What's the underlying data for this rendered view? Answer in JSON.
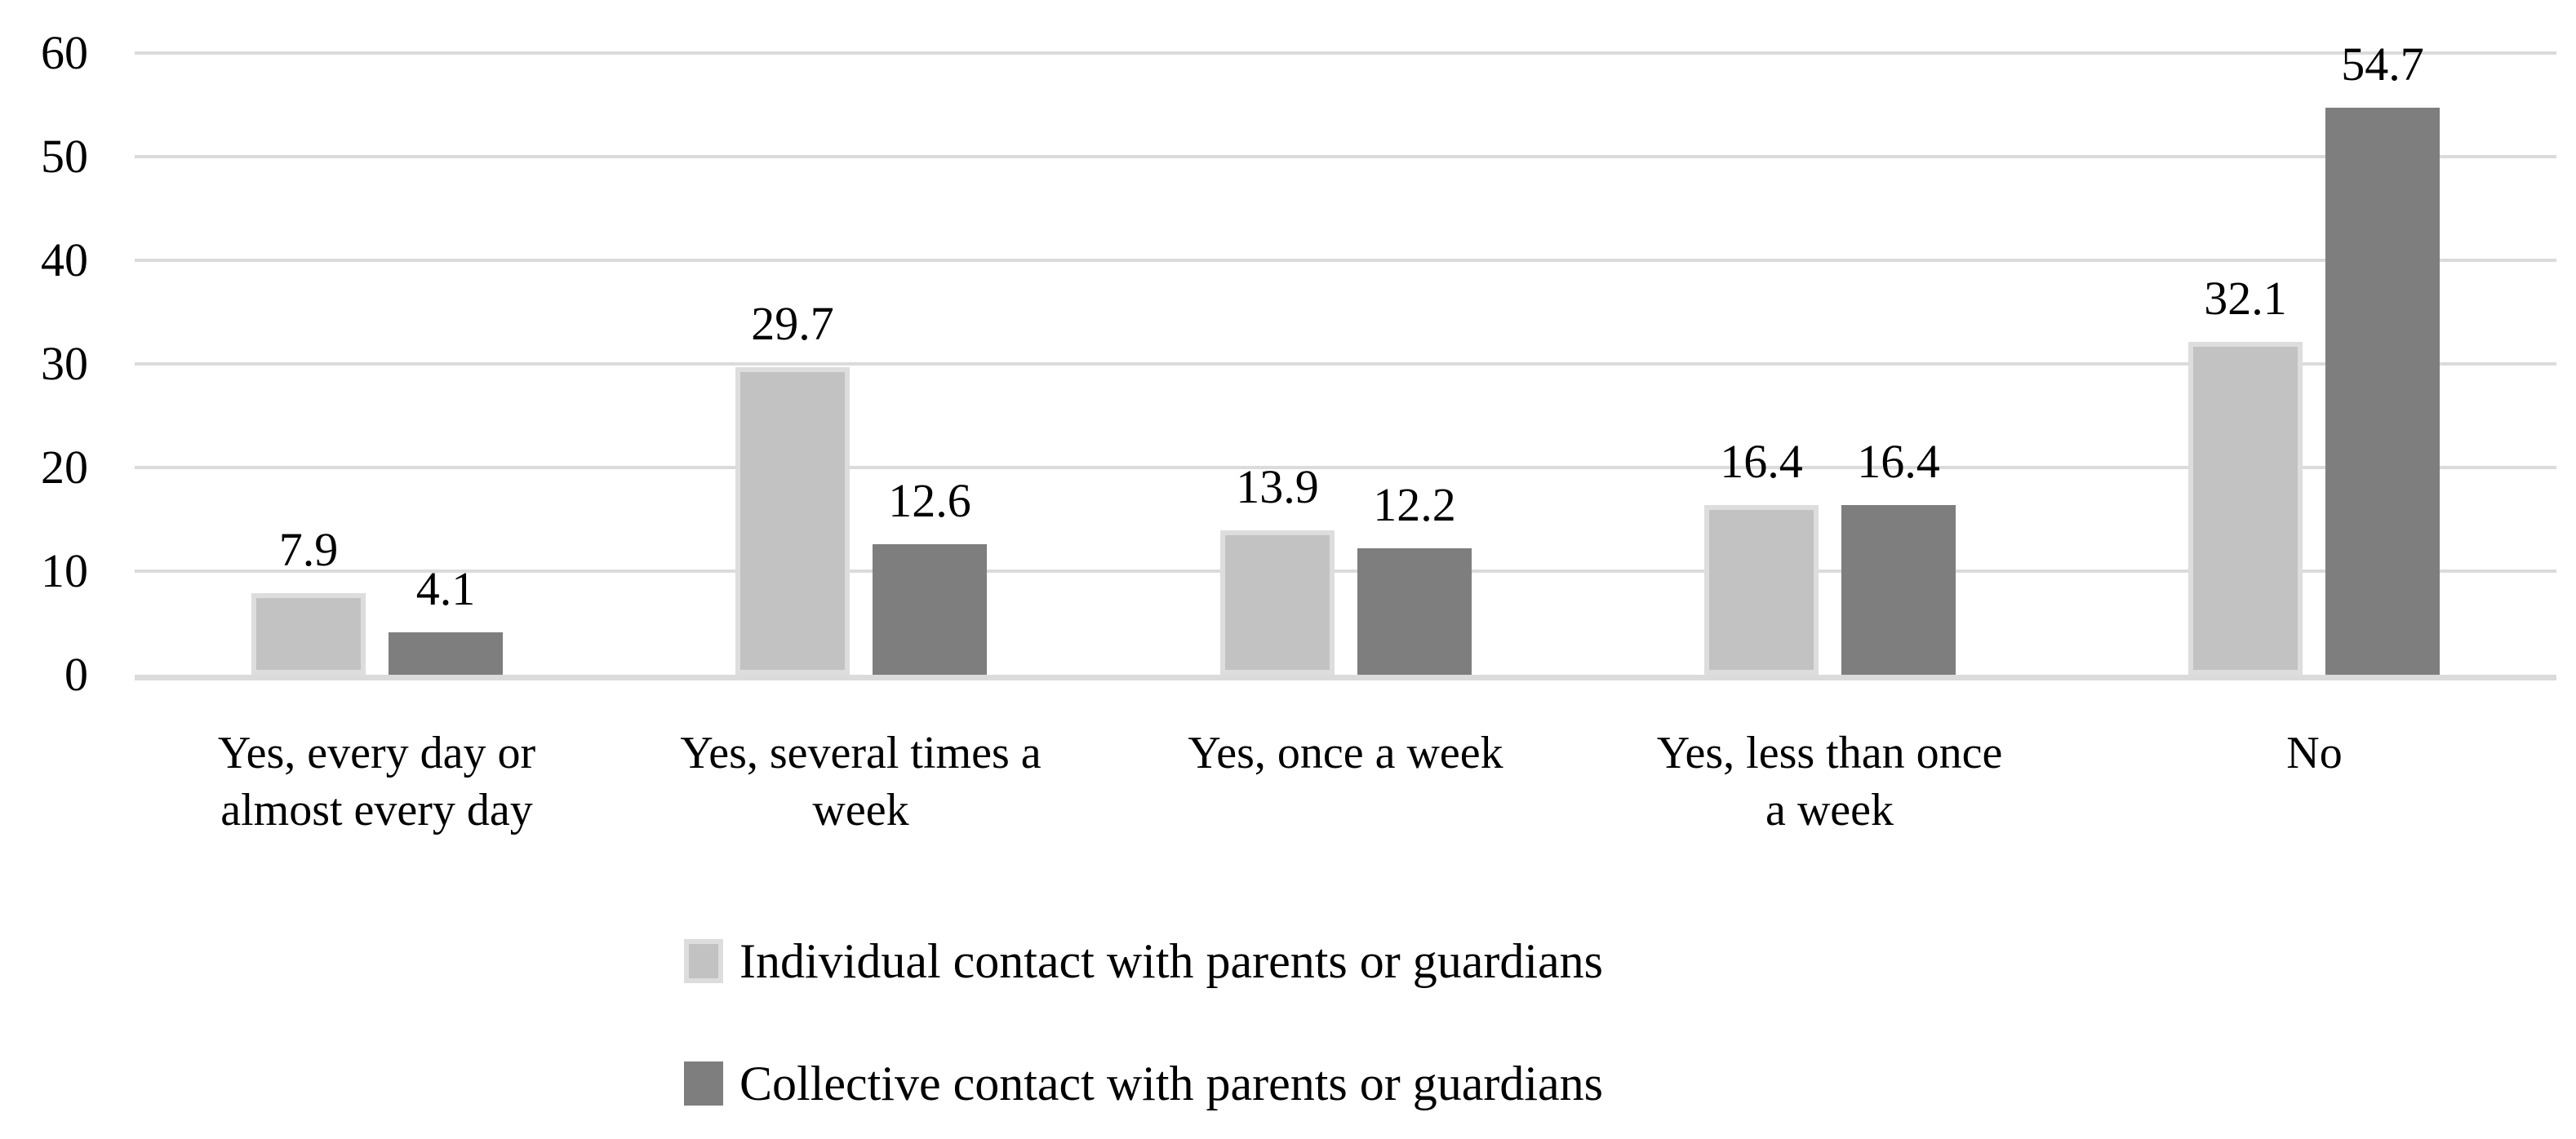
{
  "chart_data": {
    "type": "bar",
    "title": "",
    "xlabel": "",
    "ylabel": "",
    "categories": [
      "Yes, every day or\nalmost every day",
      "Yes, several times a\nweek",
      "Yes, once a week",
      "Yes, less than once\na week",
      "No"
    ],
    "series": [
      {
        "name": "Individual contact with parents or guardians",
        "values": [
          7.9,
          29.7,
          13.9,
          16.4,
          32.1
        ],
        "color": "#c2c2c2",
        "border_color": "#dddddd"
      },
      {
        "name": "Collective contact with parents or guardians",
        "values": [
          4.1,
          12.6,
          12.2,
          16.4,
          54.7
        ],
        "color": "#7e7e7e",
        "border_color": "#7e7e7e"
      }
    ],
    "ylim": [
      0,
      60
    ],
    "yticks": [
      0,
      10,
      20,
      30,
      40,
      50,
      60
    ],
    "grid": true,
    "gridline_color": "#dbdbdb",
    "axis_line_color": "#dbdbdb",
    "data_labels": true,
    "legend_position": "bottom",
    "value_label_format": "one_decimal"
  }
}
